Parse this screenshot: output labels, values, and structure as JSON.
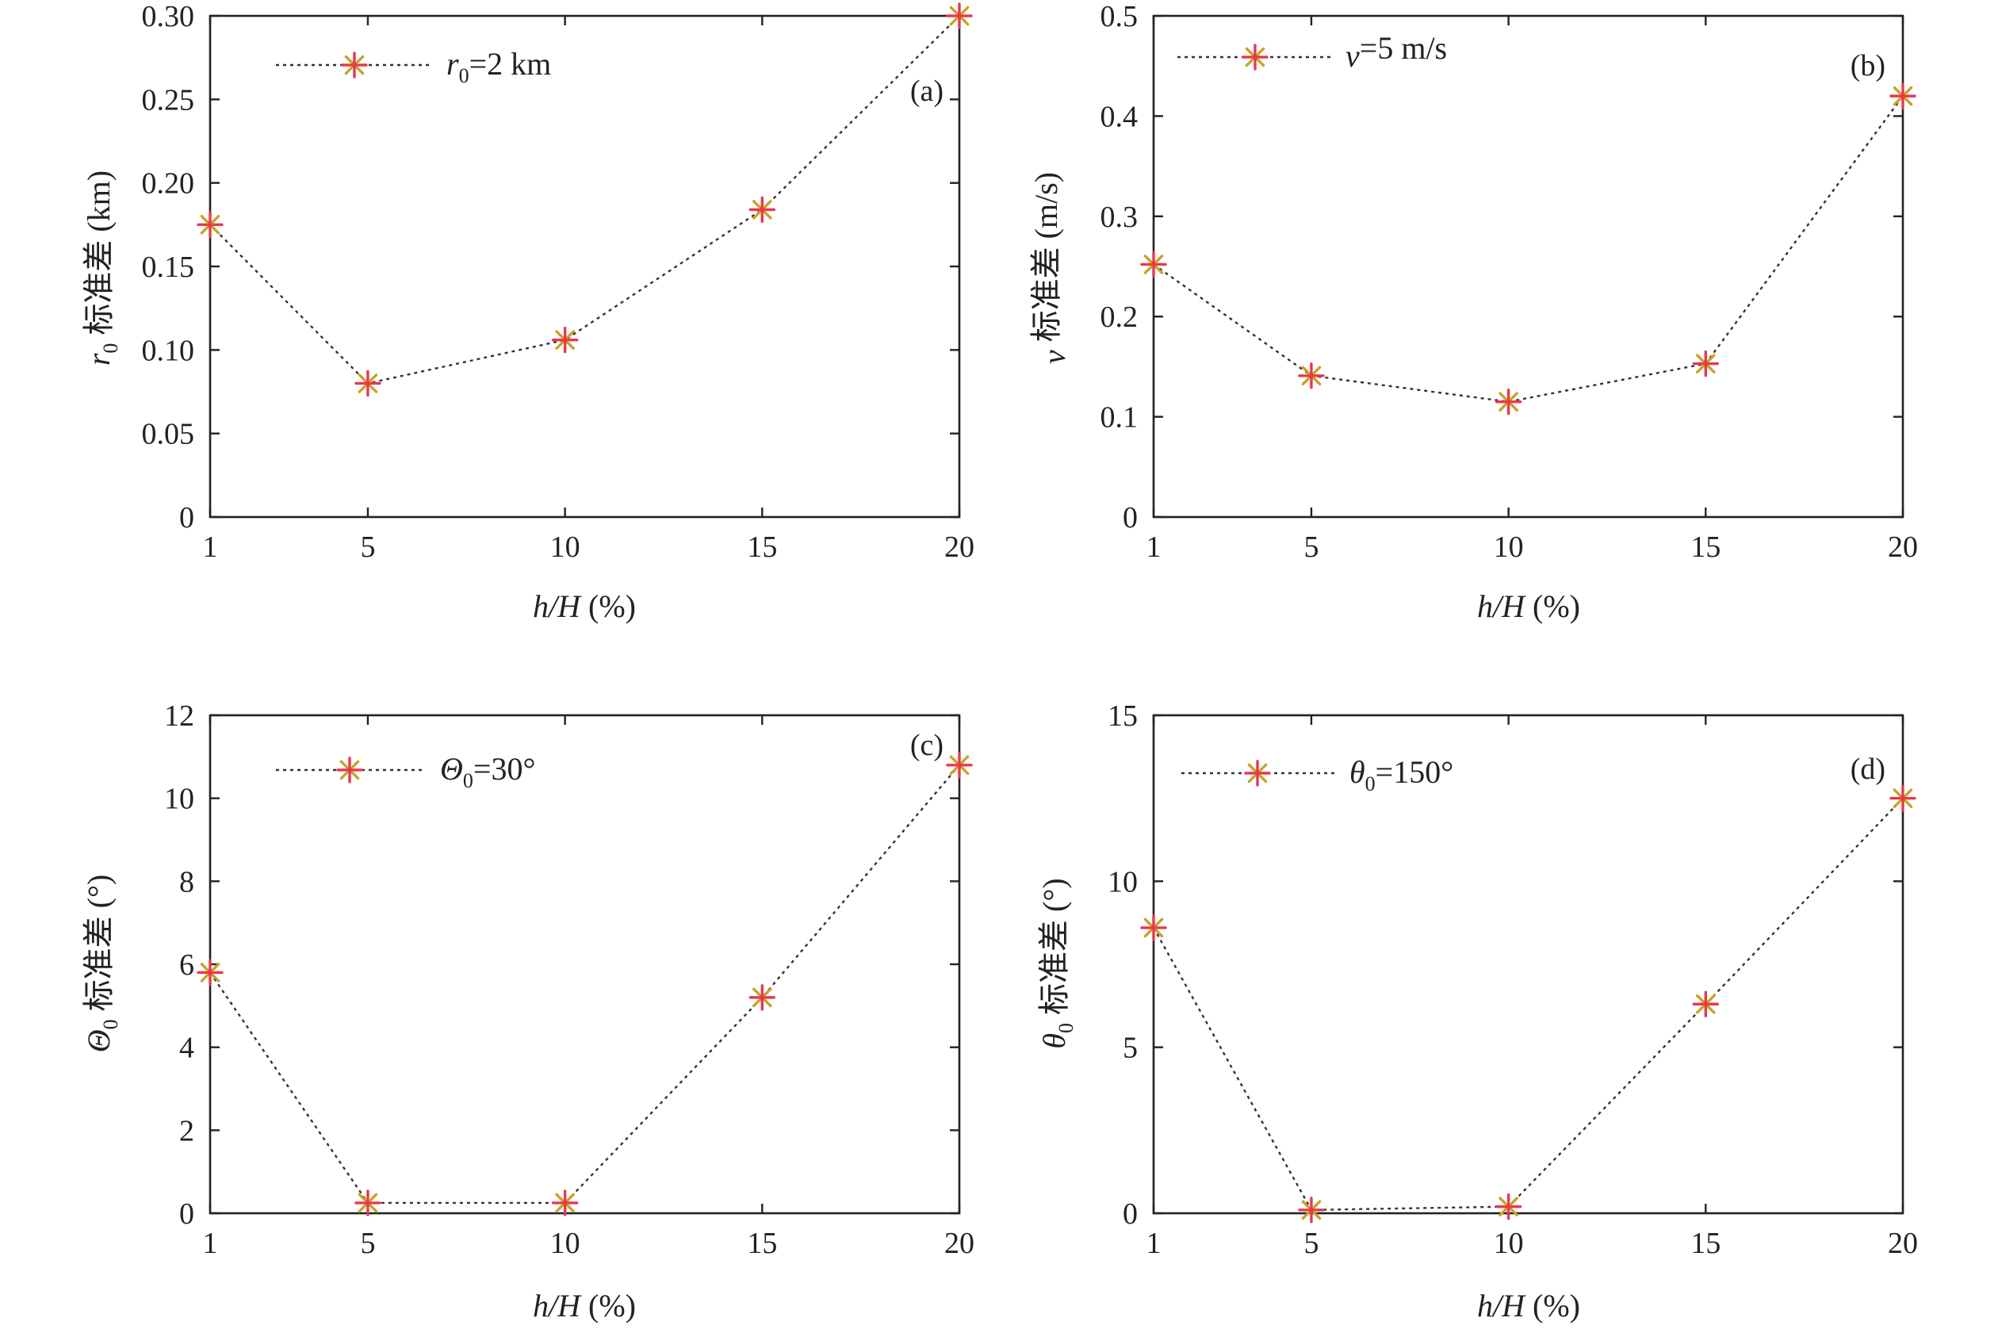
{
  "chart_data": [
    {
      "type": "line",
      "panel": "(a)",
      "categories": [
        "1",
        "5",
        "10",
        "15",
        "20"
      ],
      "series": [
        {
          "name": "r0=2 km",
          "values": [
            0.175,
            0.08,
            0.106,
            0.184,
            0.3
          ]
        }
      ],
      "xlabel": "h/H (%)",
      "ylabel": "r0 标准差 (km)",
      "ylim": [
        0,
        0.3
      ],
      "yticks": [
        "0",
        "0.05",
        "0.10",
        "0.15",
        "0.20",
        "0.25",
        "0.30"
      ],
      "legend_position": "top-left",
      "grid": false,
      "marker": "asterisk",
      "line_style": "dotted"
    },
    {
      "type": "line",
      "panel": "(b)",
      "categories": [
        "1",
        "5",
        "10",
        "15",
        "20"
      ],
      "series": [
        {
          "name": "v=5 m/s",
          "values": [
            0.252,
            0.141,
            0.115,
            0.153,
            0.42
          ]
        }
      ],
      "xlabel": "h/H (%)",
      "ylabel": "v 标准差 (m/s)",
      "ylim": [
        0,
        0.5
      ],
      "yticks": [
        "0",
        "0.1",
        "0.2",
        "0.3",
        "0.4",
        "0.5"
      ],
      "legend_position": "top-left",
      "grid": false,
      "marker": "asterisk",
      "line_style": "dotted"
    },
    {
      "type": "line",
      "panel": "(c)",
      "categories": [
        "1",
        "5",
        "10",
        "15",
        "20"
      ],
      "series": [
        {
          "name": "Θ0=30°",
          "values": [
            5.8,
            0.25,
            0.25,
            5.2,
            10.8
          ]
        }
      ],
      "xlabel": "h/H (%)",
      "ylabel": "Θ0 标准差 (°)",
      "ylim": [
        0,
        12
      ],
      "yticks": [
        "0",
        "2",
        "4",
        "6",
        "8",
        "10",
        "12"
      ],
      "legend_position": "top-left",
      "grid": false,
      "marker": "asterisk",
      "line_style": "dotted"
    },
    {
      "type": "line",
      "panel": "(d)",
      "categories": [
        "1",
        "5",
        "10",
        "15",
        "20"
      ],
      "series": [
        {
          "name": "θ0=150°",
          "values": [
            8.6,
            0.1,
            0.2,
            6.3,
            12.5
          ]
        }
      ],
      "xlabel": "h/H (%)",
      "ylabel": "θ0 标准差 (°)",
      "ylim": [
        0,
        15
      ],
      "yticks": [
        "0",
        "5",
        "10",
        "15"
      ],
      "legend_position": "top-left",
      "grid": false,
      "marker": "asterisk",
      "line_style": "dotted"
    }
  ],
  "labels": {
    "a": {
      "panel": "(a)",
      "xlabel_sym": "h/H",
      "xlabel_rest": " (%)",
      "ylabel_sym": "r",
      "ylabel_sub": "0",
      "ylabel_rest": " 标准差 (km)",
      "legend_sym": "r",
      "legend_sub": "0",
      "legend_rest": "=2 km"
    },
    "b": {
      "panel": "(b)",
      "xlabel_sym": "h/H",
      "xlabel_rest": " (%)",
      "ylabel_sym": "v",
      "ylabel_sub": "",
      "ylabel_rest": " 标准差 (m/s)",
      "legend_sym": "v",
      "legend_sub": "",
      "legend_rest": "=5 m/s"
    },
    "c": {
      "panel": "(c)",
      "xlabel_sym": "h/H",
      "xlabel_rest": " (%)",
      "ylabel_sym": "Θ",
      "ylabel_sub": "0",
      "ylabel_rest": " 标准差 (°)",
      "legend_sym": "Θ",
      "legend_sub": "0",
      "legend_rest": "=30°"
    },
    "d": {
      "panel": "(d)",
      "xlabel_sym": "h/H",
      "xlabel_rest": " (%)",
      "ylabel_sym": "θ",
      "ylabel_sub": "0",
      "ylabel_rest": " 标准差 (°)",
      "legend_sym": "θ",
      "legend_sub": "0",
      "legend_rest": "=150°"
    }
  },
  "colors": {
    "axis": "#222222",
    "line": "#333333",
    "marker_primary": "#e8384f",
    "marker_secondary": "#c9a227"
  }
}
